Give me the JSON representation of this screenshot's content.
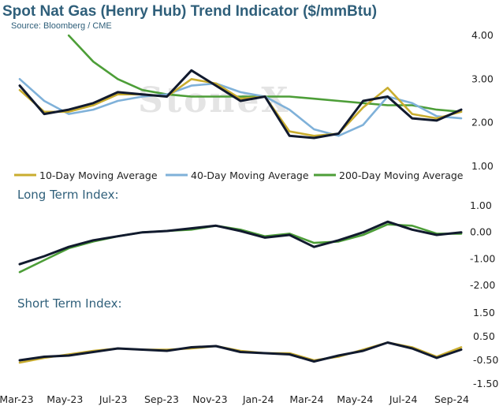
{
  "header": {
    "title": "Spot Nat Gas (Henry Hub) Trend Indicator ($/mmBtu)",
    "source": "Source: Bloomberg / CME",
    "watermark": "StoneX"
  },
  "colors": {
    "price": "#111a2e",
    "ma10": "#c9ad2f",
    "ma40": "#7fb1d9",
    "ma200": "#4d9e38",
    "title": "#2f5f7a"
  },
  "legend": [
    "10-Day Moving Average",
    "40-Day Moving Average",
    "200-Day Moving Average"
  ],
  "x_axis": {
    "tick_labels": [
      "Mar-23",
      "May-23",
      "Jul-23",
      "Sep-23",
      "Nov-23",
      "Jan-24",
      "Mar-24",
      "May-24",
      "Jul-24",
      "Sep-24"
    ]
  },
  "chart_data": [
    {
      "type": "line",
      "title": "",
      "x": [
        "Mar-23",
        "Apr-23",
        "May-23",
        "Jun-23",
        "Jul-23",
        "Aug-23",
        "Sep-23",
        "Oct-23",
        "Nov-23",
        "Dec-23",
        "Jan-24",
        "Feb-24",
        "Mar-24",
        "Apr-24",
        "May-24",
        "Jun-24",
        "Jul-24",
        "Aug-24",
        "Sep-24"
      ],
      "ylim": [
        1.0,
        4.0
      ],
      "yticks": [
        "1.00",
        "2.00",
        "3.00",
        "4.00"
      ],
      "series": [
        {
          "name": "",
          "color": "#111a2e",
          "values": [
            2.85,
            2.2,
            2.3,
            2.45,
            2.7,
            2.65,
            2.6,
            3.2,
            2.85,
            2.5,
            2.6,
            1.7,
            1.65,
            1.75,
            2.5,
            2.6,
            2.1,
            2.05,
            2.3
          ]
        },
        {
          "name": "10-Day Moving Average",
          "color": "#c9ad2f",
          "values": [
            2.75,
            2.25,
            2.25,
            2.4,
            2.65,
            2.65,
            2.6,
            3.0,
            2.9,
            2.55,
            2.6,
            1.8,
            1.7,
            1.75,
            2.35,
            2.8,
            2.2,
            2.1,
            2.25
          ]
        },
        {
          "name": "40-Day Moving Average",
          "color": "#7fb1d9",
          "values": [
            3.0,
            2.5,
            2.2,
            2.3,
            2.5,
            2.6,
            2.65,
            2.85,
            2.9,
            2.7,
            2.6,
            2.3,
            1.85,
            1.7,
            1.95,
            2.6,
            2.45,
            2.15,
            2.1
          ]
        },
        {
          "name": "200-Day Moving Average",
          "color": "#4d9e38",
          "values": [
            null,
            null,
            4.0,
            3.4,
            3.0,
            2.75,
            2.65,
            2.6,
            2.6,
            2.6,
            2.6,
            2.6,
            2.55,
            2.5,
            2.45,
            2.4,
            2.4,
            2.3,
            2.25
          ]
        }
      ]
    },
    {
      "type": "line",
      "title": "Long Term Index:",
      "x": [
        "Mar-23",
        "Apr-23",
        "May-23",
        "Jun-23",
        "Jul-23",
        "Aug-23",
        "Sep-23",
        "Oct-23",
        "Nov-23",
        "Dec-23",
        "Jan-24",
        "Feb-24",
        "Mar-24",
        "Apr-24",
        "May-24",
        "Jun-24",
        "Jul-24",
        "Aug-24",
        "Sep-24"
      ],
      "ylim": [
        -2.0,
        1.0
      ],
      "yticks": [
        "-2.00",
        "-1.00",
        "0.00",
        "1.00"
      ],
      "series": [
        {
          "name": "",
          "color": "#111a2e",
          "values": [
            -1.2,
            -0.9,
            -0.55,
            -0.3,
            -0.15,
            0.0,
            0.05,
            0.15,
            0.25,
            0.05,
            -0.2,
            -0.1,
            -0.55,
            -0.3,
            0.0,
            0.4,
            0.1,
            -0.1,
            0.0
          ]
        },
        {
          "name": "",
          "color": "#4d9e38",
          "values": [
            -1.5,
            -1.05,
            -0.6,
            -0.35,
            -0.15,
            0.0,
            0.05,
            0.1,
            0.25,
            0.1,
            -0.15,
            -0.05,
            -0.4,
            -0.35,
            -0.1,
            0.3,
            0.25,
            -0.05,
            -0.05
          ]
        }
      ]
    },
    {
      "type": "line",
      "title": "Short Term Index:",
      "x": [
        "Mar-23",
        "Apr-23",
        "May-23",
        "Jun-23",
        "Jul-23",
        "Aug-23",
        "Sep-23",
        "Oct-23",
        "Nov-23",
        "Dec-23",
        "Jan-24",
        "Feb-24",
        "Mar-24",
        "Apr-24",
        "May-24",
        "Jun-24",
        "Jul-24",
        "Aug-24",
        "Sep-24"
      ],
      "ylim": [
        -1.5,
        1.5
      ],
      "yticks": [
        "-1.50",
        "-0.50",
        "0.50",
        "1.50"
      ],
      "series": [
        {
          "name": "",
          "color": "#111a2e",
          "values": [
            -0.5,
            -0.35,
            -0.3,
            -0.15,
            0.0,
            -0.05,
            -0.1,
            0.05,
            0.1,
            -0.15,
            -0.2,
            -0.25,
            -0.55,
            -0.3,
            -0.1,
            0.25,
            0.0,
            -0.4,
            -0.05
          ]
        },
        {
          "name": "",
          "color": "#c9ad2f",
          "values": [
            -0.6,
            -0.4,
            -0.25,
            -0.1,
            0.0,
            -0.05,
            -0.05,
            0.0,
            0.1,
            -0.1,
            -0.2,
            -0.2,
            -0.5,
            -0.35,
            -0.05,
            0.25,
            0.05,
            -0.35,
            0.05
          ]
        }
      ]
    }
  ]
}
